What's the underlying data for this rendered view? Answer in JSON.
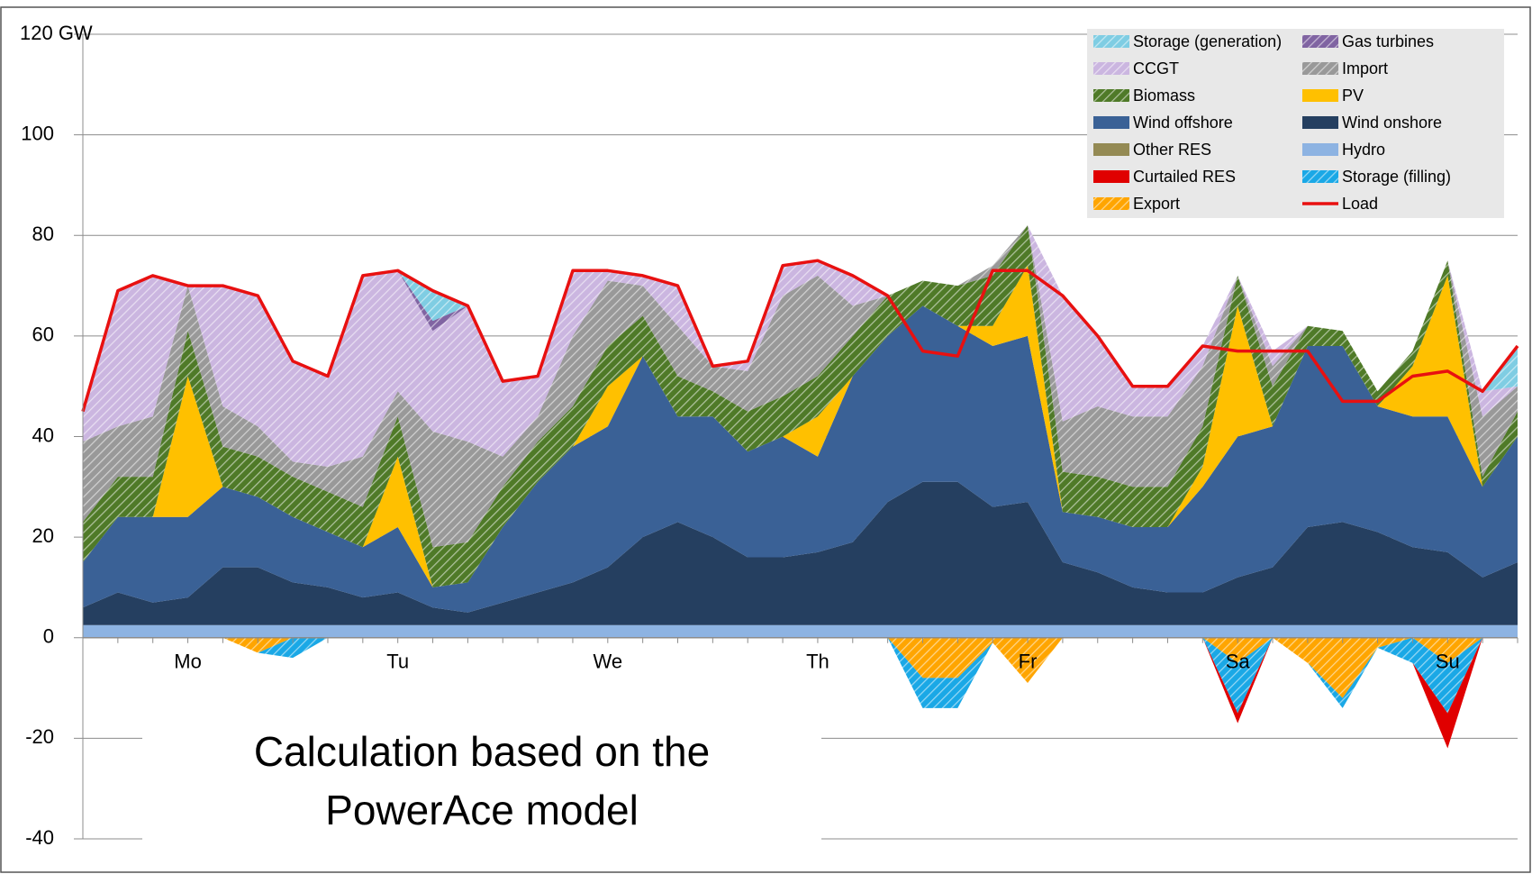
{
  "chart_data": {
    "type": "area",
    "stacked": true,
    "categories": [
      null,
      null,
      null,
      "Mo",
      null,
      null,
      null,
      null,
      null,
      "Tu",
      null,
      null,
      null,
      null,
      null,
      "We",
      null,
      null,
      null,
      null,
      null,
      "Th",
      null,
      null,
      null,
      null,
      null,
      "Fr",
      null,
      null,
      null,
      null,
      null,
      "Sa",
      null,
      null,
      null,
      null,
      null,
      "Su",
      null,
      null
    ],
    "ylim": [
      -40,
      120
    ],
    "yticks": [
      -40,
      -20,
      0,
      20,
      40,
      60,
      80,
      100,
      {
        "value": 120,
        "label": "120 GW"
      }
    ],
    "grid": true,
    "legend": "upper right",
    "annotation": [
      "Calculation based on the",
      "PowerAce model"
    ],
    "series": [
      {
        "name": "Storage (generation)",
        "color": "#7fcde3",
        "hatch": true,
        "values": [
          0,
          0,
          0,
          0,
          0,
          0,
          0,
          0,
          0,
          0,
          6,
          0,
          0,
          0,
          0,
          0,
          0,
          0,
          0,
          0,
          0,
          0,
          0,
          0,
          0,
          0,
          0,
          0,
          0,
          0,
          0,
          0,
          0,
          0,
          0,
          0,
          0,
          0,
          0,
          0,
          0,
          8
        ]
      },
      {
        "name": "Gas turbines",
        "color": "#8064a2",
        "hatch": true,
        "values": [
          0,
          0,
          0,
          0,
          0,
          0,
          0,
          0,
          0,
          0,
          2,
          0,
          0,
          0,
          0,
          0,
          0,
          0,
          0,
          0,
          0,
          0,
          0,
          0,
          0,
          0,
          0,
          0,
          0,
          0,
          0,
          0,
          0,
          0,
          0,
          0,
          0,
          0,
          0,
          0,
          0,
          0
        ]
      },
      {
        "name": "CCGT",
        "color": "#cbb6e0",
        "hatch": true,
        "values": [
          6,
          27,
          28,
          0,
          24,
          26,
          20,
          18,
          36,
          24,
          20,
          27,
          15,
          8,
          13,
          2,
          2,
          8,
          0,
          2,
          6,
          3,
          6,
          0,
          0,
          0,
          0,
          0,
          25,
          14,
          6,
          6,
          4,
          0,
          3,
          0,
          0,
          0,
          0,
          0,
          5,
          0
        ]
      },
      {
        "name": "Import",
        "color": "#999999",
        "hatch": true,
        "values": [
          16,
          10,
          12,
          9,
          8,
          6,
          3,
          5,
          10,
          5,
          23,
          20,
          6,
          5,
          14,
          13,
          6,
          10,
          5,
          8,
          20,
          20,
          6,
          0,
          0,
          0,
          2,
          0,
          10,
          14,
          14,
          14,
          12,
          0,
          4,
          0,
          0,
          0,
          0,
          0,
          12,
          5
        ]
      },
      {
        "name": "Biomass",
        "color": "#4f7a28",
        "hatch": true,
        "values": [
          8,
          8,
          8,
          9,
          8,
          8,
          8,
          8,
          8,
          8,
          8,
          8,
          8,
          8,
          8,
          8,
          8,
          8,
          5,
          8,
          8,
          8,
          8,
          8,
          5,
          8,
          10,
          8,
          8,
          8,
          8,
          8,
          8,
          6,
          8,
          4,
          3,
          3,
          3,
          3,
          2,
          5
        ]
      },
      {
        "name": "PV",
        "color": "#ffc000",
        "hatch": false,
        "values": [
          0,
          0,
          0,
          28,
          0,
          0,
          0,
          0,
          0,
          14,
          0,
          0,
          0,
          0,
          0,
          8,
          0,
          0,
          0,
          0,
          0,
          8,
          0,
          0,
          0,
          0,
          4,
          14,
          0,
          0,
          0,
          0,
          4,
          26,
          0,
          0,
          0,
          0,
          10,
          28,
          0,
          0
        ]
      },
      {
        "name": "Wind offshore",
        "color": "#3a6196",
        "hatch": false,
        "values": [
          9,
          15,
          17,
          16,
          16,
          14,
          13,
          11,
          10,
          13,
          4,
          6,
          15,
          22,
          27,
          28,
          36,
          21,
          24,
          21,
          24,
          19,
          33,
          33,
          35,
          31,
          32,
          33,
          10,
          11,
          12,
          13,
          21,
          28,
          28,
          36,
          35,
          25,
          26,
          27,
          18,
          25
        ]
      },
      {
        "name": "Wind onshore",
        "color": "#253f60",
        "hatch": false,
        "values": [
          3.5,
          6.5,
          4.5,
          5.5,
          11.5,
          11.5,
          8.5,
          7.5,
          5.5,
          6.5,
          3.5,
          2.5,
          4.5,
          6.5,
          8.5,
          11.5,
          17.5,
          20.5,
          17.5,
          13.5,
          13.5,
          14.5,
          16.5,
          24.5,
          28.5,
          28.5,
          23.5,
          24.5,
          12.5,
          10.5,
          7.5,
          6.5,
          6.5,
          9.5,
          11.5,
          19.5,
          20.5,
          18.5,
          15.5,
          14.5,
          9.5,
          12.5
        ]
      },
      {
        "name": "Other RES",
        "color": "#948a54",
        "hatch": false,
        "values": [
          0,
          0,
          0,
          0,
          0,
          0,
          0,
          0,
          0,
          0,
          0,
          0,
          0,
          0,
          0,
          0,
          0,
          0,
          0,
          0,
          0,
          0,
          0,
          0,
          0,
          0,
          0,
          0,
          0,
          0,
          0,
          0,
          0,
          0,
          0,
          0,
          0,
          0,
          0,
          0,
          0,
          0
        ]
      },
      {
        "name": "Hydro",
        "color": "#8db3e2",
        "hatch": false,
        "values": [
          2.5,
          2.5,
          2.5,
          2.5,
          2.5,
          2.5,
          2.5,
          2.5,
          2.5,
          2.5,
          2.5,
          2.5,
          2.5,
          2.5,
          2.5,
          2.5,
          2.5,
          2.5,
          2.5,
          2.5,
          2.5,
          2.5,
          2.5,
          2.5,
          2.5,
          2.5,
          2.5,
          2.5,
          2.5,
          2.5,
          2.5,
          2.5,
          2.5,
          2.5,
          2.5,
          2.5,
          2.5,
          2.5,
          2.5,
          2.5,
          2.5,
          2.5
        ]
      },
      {
        "name": "Curtailed RES",
        "color": "#e00000",
        "hatch": false,
        "values": [
          0,
          0,
          0,
          0,
          0,
          0,
          0,
          0,
          0,
          0,
          0,
          0,
          0,
          0,
          0,
          0,
          0,
          0,
          0,
          0,
          0,
          0,
          0,
          0,
          0,
          0,
          0,
          0,
          0,
          0,
          0,
          0,
          0,
          -2,
          0,
          0,
          0,
          0,
          0,
          -7,
          0,
          0
        ]
      },
      {
        "name": "Storage (filling)",
        "color": "#1aa8e6",
        "hatch": true,
        "values": [
          0,
          0,
          0,
          0,
          0,
          0,
          -4,
          0,
          0,
          0,
          0,
          0,
          0,
          0,
          0,
          0,
          0,
          0,
          0,
          0,
          0,
          0,
          0,
          0,
          -6,
          -6,
          0,
          0,
          0,
          0,
          0,
          0,
          0,
          -10,
          0,
          0,
          -2,
          0,
          -5,
          -10,
          0,
          0
        ]
      },
      {
        "name": "Export",
        "color": "#ffa500",
        "hatch": true,
        "values": [
          0,
          0,
          0,
          0,
          0,
          -3,
          0,
          0,
          0,
          0,
          0,
          0,
          0,
          0,
          0,
          0,
          0,
          0,
          0,
          0,
          0,
          0,
          0,
          0,
          -8,
          -8,
          -1,
          -9,
          0,
          0,
          0,
          0,
          0,
          -5,
          0,
          -5,
          -12,
          -2,
          0,
          -5,
          0,
          0
        ]
      },
      {
        "name": "Load",
        "color": "#e81010",
        "type": "line",
        "values": [
          45,
          69,
          72,
          70,
          70,
          68,
          55,
          52,
          72,
          73,
          69,
          66,
          51,
          52,
          73,
          73,
          72,
          70,
          54,
          55,
          74,
          75,
          72,
          68,
          57,
          56,
          73,
          73,
          68,
          60,
          50,
          50,
          58,
          57,
          57,
          57,
          47,
          47,
          52,
          53,
          49,
          58
        ]
      }
    ]
  }
}
